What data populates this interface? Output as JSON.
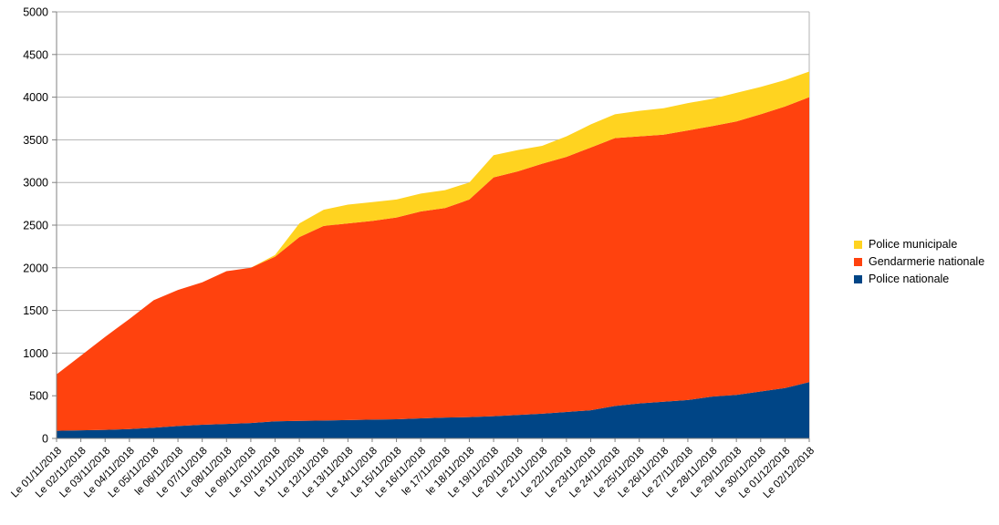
{
  "chart_data": {
    "type": "area",
    "stacked": true,
    "title": "",
    "xlabel": "",
    "ylabel": "",
    "categories": [
      "Le 01/11/2018",
      "Le 02/11/2018",
      "Le 03/11/2018",
      "Le 04/11/2018",
      "Le 05/11/2018",
      "le 06/11/2018",
      "Le 07/11/2018",
      "Le 08/11/2018",
      "Le 09/11/2018",
      "Le 10/11/2018",
      "Le 11/11/2018",
      "Le 12/11/2018",
      "Le 13/11/2018",
      "Le 14/11/2018",
      "Le 15/11/2018",
      "Le 16/11/2018",
      "le 17/11/2018",
      "le 18/11/2018",
      "Le 19/11/2018",
      "Le 20/11/2018",
      "Le 21/11/2018",
      "Le 22/11/2018",
      "Le 23/11/2018",
      "Le 24/11/2018",
      "Le 25/11/2018",
      "Le 26/11/2018",
      "Le 27/11/2018",
      "Le 28/11/2018",
      "Le 29/11/2018",
      "Le 30/11/2018",
      "Le 01/12/2018",
      "Le 02/12/2018"
    ],
    "series": [
      {
        "name": "Police nationale",
        "color": "#004586",
        "values": [
          90,
          95,
          100,
          110,
          125,
          145,
          160,
          170,
          180,
          200,
          205,
          210,
          215,
          220,
          225,
          235,
          245,
          250,
          260,
          275,
          290,
          310,
          330,
          380,
          410,
          430,
          450,
          490,
          510,
          550,
          590,
          660
        ]
      },
      {
        "name": "Gendarmerie nationale",
        "color": "#FF420E",
        "values": [
          660,
          875,
          1090,
          1290,
          1495,
          1595,
          1670,
          1790,
          1820,
          1930,
          2155,
          2280,
          2305,
          2330,
          2365,
          2425,
          2455,
          2550,
          2800,
          2855,
          2930,
          2990,
          3080,
          3140,
          3130,
          3130,
          3160,
          3170,
          3205,
          3250,
          3300,
          3340
        ]
      },
      {
        "name": "Police municipale",
        "color": "#FFD320",
        "values": [
          0,
          0,
          0,
          0,
          0,
          0,
          0,
          0,
          0,
          20,
          160,
          190,
          220,
          220,
          210,
          210,
          210,
          200,
          260,
          250,
          210,
          240,
          270,
          280,
          300,
          310,
          320,
          320,
          335,
          320,
          310,
          300
        ]
      }
    ],
    "ylim": [
      0,
      5000
    ],
    "ytick_step": 500,
    "grid": "horizontal",
    "legend_position": "right",
    "legend_order_top_to_bottom": [
      "Police municipale",
      "Gendarmerie nationale",
      "Police nationale"
    ],
    "colors": {
      "background": "#FFFFFF",
      "gridline": "#B3B3B3",
      "axis": "#808080",
      "plot_border": "#B3B3B3",
      "label": "#000000"
    }
  }
}
